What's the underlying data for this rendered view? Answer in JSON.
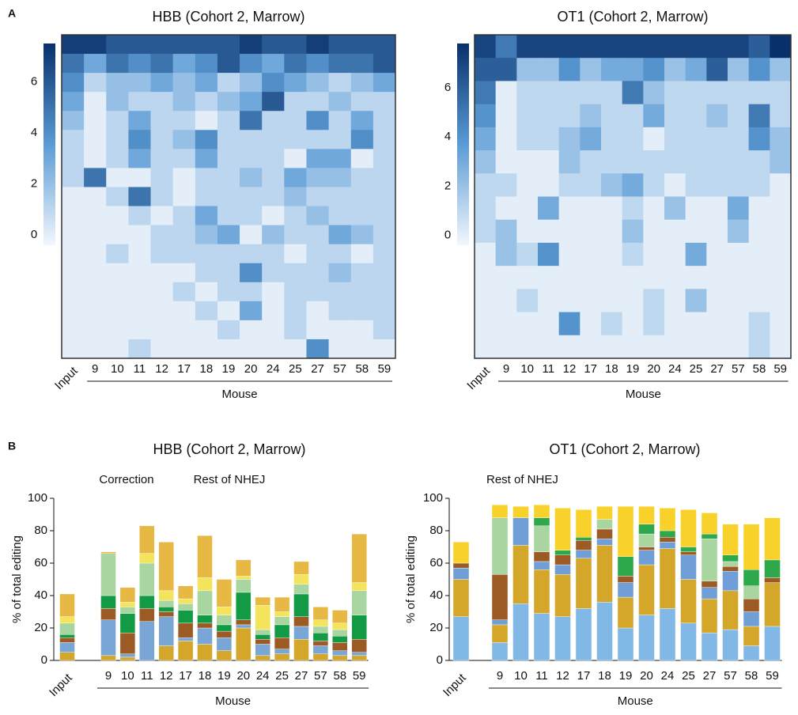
{
  "panel_labels": [
    "A",
    "B"
  ],
  "chart_data": [
    {
      "type": "heatmap",
      "title": "HBB (Cohort 2, Marrow)",
      "xlabel": "Mouse",
      "categories": [
        "Input",
        "9",
        "10",
        "11",
        "12",
        "17",
        "18",
        "19",
        "20",
        "24",
        "25",
        "27",
        "57",
        "58",
        "59"
      ],
      "colormap": [
        "#f2f7fd",
        "#5b9bd5",
        "#08306b"
      ],
      "zlim": [
        -0.4,
        7.5
      ],
      "zticks": [
        0,
        2,
        4,
        6
      ],
      "values": [
        [
          7,
          7,
          6,
          6,
          6,
          6,
          6,
          6,
          7,
          6,
          6,
          7,
          6,
          6,
          6
        ],
        [
          5,
          3,
          5,
          4,
          5,
          3,
          4,
          6,
          4,
          3,
          5,
          4,
          5,
          5,
          6
        ],
        [
          4,
          1,
          2,
          2,
          3,
          2,
          3,
          1,
          2,
          4,
          3,
          2,
          1,
          2,
          3
        ],
        [
          3,
          0,
          2,
          1,
          1,
          2,
          1,
          2,
          3,
          6,
          1,
          1,
          2,
          1,
          1
        ],
        [
          2,
          0,
          1,
          3,
          1,
          1,
          0,
          1,
          5,
          1,
          1,
          4,
          1,
          3,
          1
        ],
        [
          1,
          0,
          1,
          4,
          1,
          2,
          4,
          1,
          1,
          1,
          1,
          1,
          1,
          4,
          1
        ],
        [
          1,
          0,
          1,
          3,
          1,
          1,
          3,
          1,
          1,
          1,
          0,
          3,
          3,
          0,
          1
        ],
        [
          1,
          5,
          0,
          0,
          1,
          0,
          1,
          1,
          2,
          1,
          3,
          2,
          2,
          1,
          1
        ],
        [
          0,
          0,
          1,
          5,
          1,
          0,
          1,
          1,
          1,
          1,
          2,
          1,
          1,
          1,
          1
        ],
        [
          0,
          0,
          0,
          1,
          0,
          1,
          3,
          1,
          1,
          0,
          1,
          2,
          1,
          1,
          1
        ],
        [
          0,
          0,
          0,
          0,
          1,
          1,
          2,
          3,
          0,
          2,
          1,
          1,
          3,
          2,
          1
        ],
        [
          0,
          0,
          1,
          0,
          1,
          1,
          1,
          1,
          1,
          1,
          0,
          1,
          1,
          0,
          1
        ],
        [
          0,
          0,
          0,
          0,
          0,
          0,
          1,
          1,
          4,
          1,
          1,
          1,
          2,
          1,
          1
        ],
        [
          0,
          0,
          0,
          0,
          0,
          1,
          0,
          1,
          1,
          0,
          1,
          1,
          1,
          1,
          1
        ],
        [
          0,
          0,
          0,
          0,
          0,
          0,
          1,
          0,
          3,
          0,
          1,
          0,
          1,
          1,
          1
        ],
        [
          0,
          0,
          0,
          0,
          0,
          0,
          0,
          1,
          0,
          0,
          1,
          0,
          0,
          0,
          1
        ],
        [
          0,
          0,
          0,
          1,
          0,
          0,
          0,
          0,
          0,
          0,
          0,
          4,
          0,
          0,
          0
        ]
      ]
    },
    {
      "type": "heatmap",
      "title": "OT1 (Cohort 2, Marrow)",
      "xlabel": "Mouse",
      "categories": [
        "Input",
        "9",
        "10",
        "11",
        "12",
        "17",
        "18",
        "19",
        "20",
        "24",
        "25",
        "27",
        "57",
        "58",
        "59"
      ],
      "colormap": [
        "#f2f7fd",
        "#5b9bd5",
        "#08306b"
      ],
      "zlim": [
        -0.4,
        7.8
      ],
      "zticks": [
        0,
        2,
        4,
        6
      ],
      "values": [
        [
          7,
          5,
          7,
          7,
          7,
          7,
          7,
          7,
          7,
          7,
          7,
          7,
          7,
          6,
          8
        ],
        [
          6,
          6,
          2,
          2,
          4,
          2,
          3,
          3,
          4,
          2,
          3,
          6,
          2,
          4,
          2
        ],
        [
          5,
          0,
          1,
          1,
          1,
          1,
          1,
          5,
          2,
          1,
          1,
          1,
          1,
          1,
          1
        ],
        [
          4,
          0,
          1,
          1,
          1,
          2,
          1,
          1,
          3,
          1,
          1,
          2,
          1,
          5,
          1
        ],
        [
          3,
          0,
          1,
          1,
          2,
          3,
          1,
          1,
          0,
          1,
          1,
          1,
          1,
          4,
          2
        ],
        [
          2,
          0,
          0,
          0,
          2,
          1,
          1,
          1,
          1,
          1,
          1,
          1,
          1,
          1,
          2
        ],
        [
          1,
          1,
          0,
          0,
          1,
          1,
          2,
          3,
          1,
          0,
          1,
          1,
          1,
          1,
          0
        ],
        [
          1,
          0,
          0,
          3,
          0,
          0,
          0,
          1,
          0,
          2,
          0,
          0,
          3,
          0,
          0
        ],
        [
          1,
          2,
          0,
          0,
          0,
          0,
          0,
          2,
          0,
          0,
          0,
          0,
          2,
          0,
          0
        ],
        [
          0,
          2,
          1,
          4,
          0,
          0,
          0,
          1,
          0,
          0,
          3,
          0,
          0,
          0,
          0
        ],
        [
          0,
          0,
          0,
          0,
          0,
          0,
          0,
          0,
          0,
          0,
          0,
          0,
          0,
          0,
          0
        ],
        [
          0,
          0,
          1,
          0,
          0,
          0,
          0,
          0,
          1,
          0,
          2,
          0,
          0,
          0,
          0
        ],
        [
          0,
          0,
          0,
          0,
          4,
          0,
          1,
          0,
          1,
          0,
          0,
          0,
          0,
          1,
          0
        ],
        [
          0,
          0,
          0,
          0,
          0,
          0,
          0,
          0,
          0,
          0,
          0,
          0,
          0,
          1,
          0
        ]
      ]
    },
    {
      "type": "stacked_bar",
      "title": "HBB (Cohort 2, Marrow)",
      "annotations": [
        "Correction",
        "Rest of NHEJ"
      ],
      "ylabel": "% of total editing",
      "xlabel": "Mouse",
      "categories": [
        "Input",
        "9",
        "10",
        "11",
        "12",
        "17",
        "18",
        "19",
        "20",
        "24",
        "25",
        "27",
        "57",
        "58",
        "59"
      ],
      "ylim": [
        0,
        100
      ],
      "yticks": [
        0,
        20,
        40,
        60,
        80,
        100
      ],
      "series": [
        {
          "color": "#d4a62a",
          "values": [
            5,
            3,
            2,
            0,
            9,
            12,
            10,
            6,
            20,
            3,
            4,
            13,
            4,
            3,
            3
          ]
        },
        {
          "color": "#7aa6d6",
          "values": [
            6,
            22,
            2,
            24,
            18,
            2,
            10,
            8,
            2,
            7,
            3,
            8,
            5,
            3,
            2
          ]
        },
        {
          "color": "#9c5a24",
          "values": [
            3,
            7,
            13,
            8,
            3,
            9,
            3,
            4,
            3,
            3,
            7,
            6,
            3,
            5,
            8
          ]
        },
        {
          "color": "#139a45",
          "values": [
            2,
            8,
            12,
            8,
            3,
            8,
            5,
            4,
            17,
            3,
            8,
            14,
            5,
            4,
            15
          ]
        },
        {
          "color": "#a8d5a0",
          "values": [
            7,
            26,
            4,
            20,
            4,
            4,
            15,
            6,
            8,
            3,
            5,
            6,
            4,
            4,
            15
          ]
        },
        {
          "color": "#f4e45c",
          "values": [
            4,
            0,
            3,
            6,
            6,
            3,
            8,
            5,
            2,
            15,
            3,
            6,
            4,
            4,
            5
          ]
        },
        {
          "color": "#e8b844",
          "values": [
            14,
            1,
            9,
            17,
            30,
            8,
            26,
            17,
            10,
            5,
            9,
            8,
            8,
            8,
            30
          ]
        }
      ]
    },
    {
      "type": "stacked_bar",
      "title": "OT1 (Cohort 2, Marrow)",
      "annotations": [
        "Rest of NHEJ"
      ],
      "ylabel": "% of total editing",
      "xlabel": "Mouse",
      "categories": [
        "Input",
        "9",
        "10",
        "11",
        "12",
        "17",
        "18",
        "19",
        "20",
        "24",
        "25",
        "27",
        "57",
        "58",
        "59"
      ],
      "ylim": [
        0,
        100
      ],
      "yticks": [
        0,
        20,
        40,
        60,
        80,
        100
      ],
      "series": [
        {
          "color": "#82b8e6",
          "values": [
            27,
            11,
            35,
            29,
            27,
            32,
            36,
            20,
            28,
            32,
            23,
            17,
            19,
            9,
            21
          ]
        },
        {
          "color": "#d4a62a",
          "values": [
            23,
            11,
            36,
            27,
            26,
            31,
            35,
            19,
            31,
            37,
            27,
            21,
            24,
            12,
            27
          ]
        },
        {
          "color": "#6f9fd6",
          "values": [
            7,
            3,
            17,
            5,
            6,
            5,
            4,
            9,
            9,
            4,
            15,
            7,
            12,
            9,
            0
          ]
        },
        {
          "color": "#9c5a24",
          "values": [
            3,
            28,
            0,
            6,
            6,
            6,
            6,
            4,
            2,
            3,
            2,
            4,
            3,
            8,
            3
          ]
        },
        {
          "color": "#a8d5a0",
          "values": [
            0,
            35,
            0,
            16,
            0,
            0,
            6,
            0,
            8,
            0,
            0,
            26,
            3,
            8,
            0
          ]
        },
        {
          "color": "#2ea84a",
          "values": [
            0,
            0,
            0,
            5,
            3,
            2,
            0,
            12,
            6,
            4,
            3,
            3,
            4,
            10,
            11
          ]
        },
        {
          "color": "#f8d22a",
          "values": [
            13,
            8,
            7,
            8,
            26,
            17,
            8,
            31,
            11,
            14,
            23,
            13,
            19,
            28,
            26
          ]
        }
      ]
    }
  ]
}
